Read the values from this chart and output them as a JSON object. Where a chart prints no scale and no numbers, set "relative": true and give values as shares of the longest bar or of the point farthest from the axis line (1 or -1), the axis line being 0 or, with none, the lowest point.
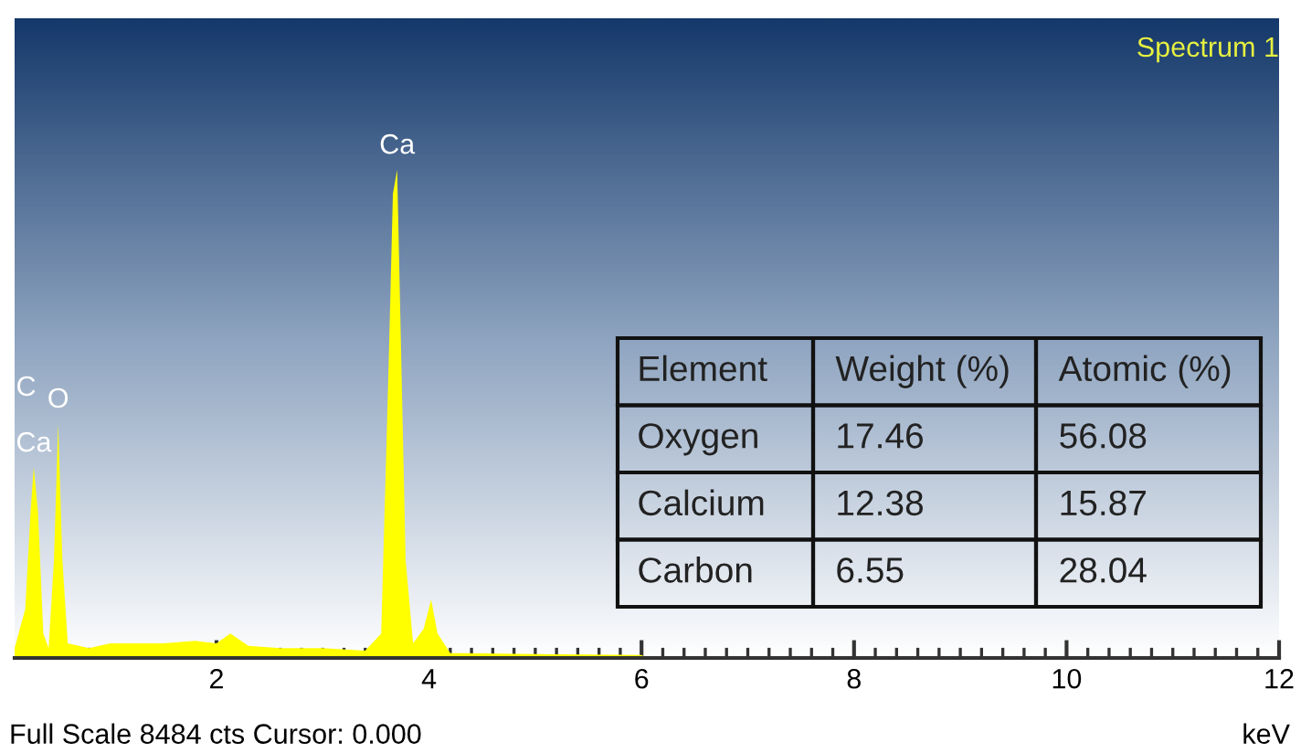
{
  "chart_data": {
    "type": "area",
    "title": "Spectrum 1",
    "xlabel": "keV",
    "relative": true,
    "x": [
      0.1,
      0.2,
      0.25,
      0.28,
      0.32,
      0.37,
      0.42,
      0.47,
      0.51,
      0.55,
      0.6,
      0.8,
      1.0,
      1.5,
      1.8,
      2.0,
      2.13,
      2.3,
      2.6,
      3.0,
      3.4,
      3.55,
      3.62,
      3.66,
      3.7,
      3.74,
      3.78,
      3.85,
      3.95,
      4.02,
      4.08,
      4.2,
      5.0,
      6.0,
      6.05,
      12
    ],
    "series": [
      {
        "color": "#ffff00",
        "values": [
          0.02,
          0.1,
          0.3,
          0.39,
          0.3,
          0.05,
          0.02,
          0.2,
          0.48,
          0.2,
          0.03,
          0.02,
          0.03,
          0.03,
          0.035,
          0.03,
          0.05,
          0.025,
          0.02,
          0.02,
          0.015,
          0.05,
          0.6,
          0.95,
          1,
          0.6,
          0.2,
          0.03,
          0.06,
          0.12,
          0.05,
          0.01,
          0.008,
          0.006,
          0,
          0
        ]
      }
    ],
    "xlim": [
      0.1,
      12
    ],
    "xticks": [
      2,
      4,
      6,
      8,
      10,
      12
    ],
    "tick_labels": "x",
    "grid": false,
    "annotations": [
      "Full Scale 8484 cts Cursor: 0.000",
      "Element",
      "Weight (%)",
      "Atomic (%)",
      "Oxygen",
      "17.46",
      "56.08",
      "Calcium",
      "12.38",
      "15.87",
      "Carbon",
      "6.55",
      "28.04",
      {
        "text": "Ca",
        "x": 3.7,
        "y": 1
      },
      {
        "text": "O",
        "x": 0.51,
        "y": 0.48
      },
      {
        "text": "Ca",
        "x": 0.28,
        "y": 0.39
      },
      {
        "text": "C",
        "x": 0.28,
        "y": 0.39
      }
    ]
  }
}
